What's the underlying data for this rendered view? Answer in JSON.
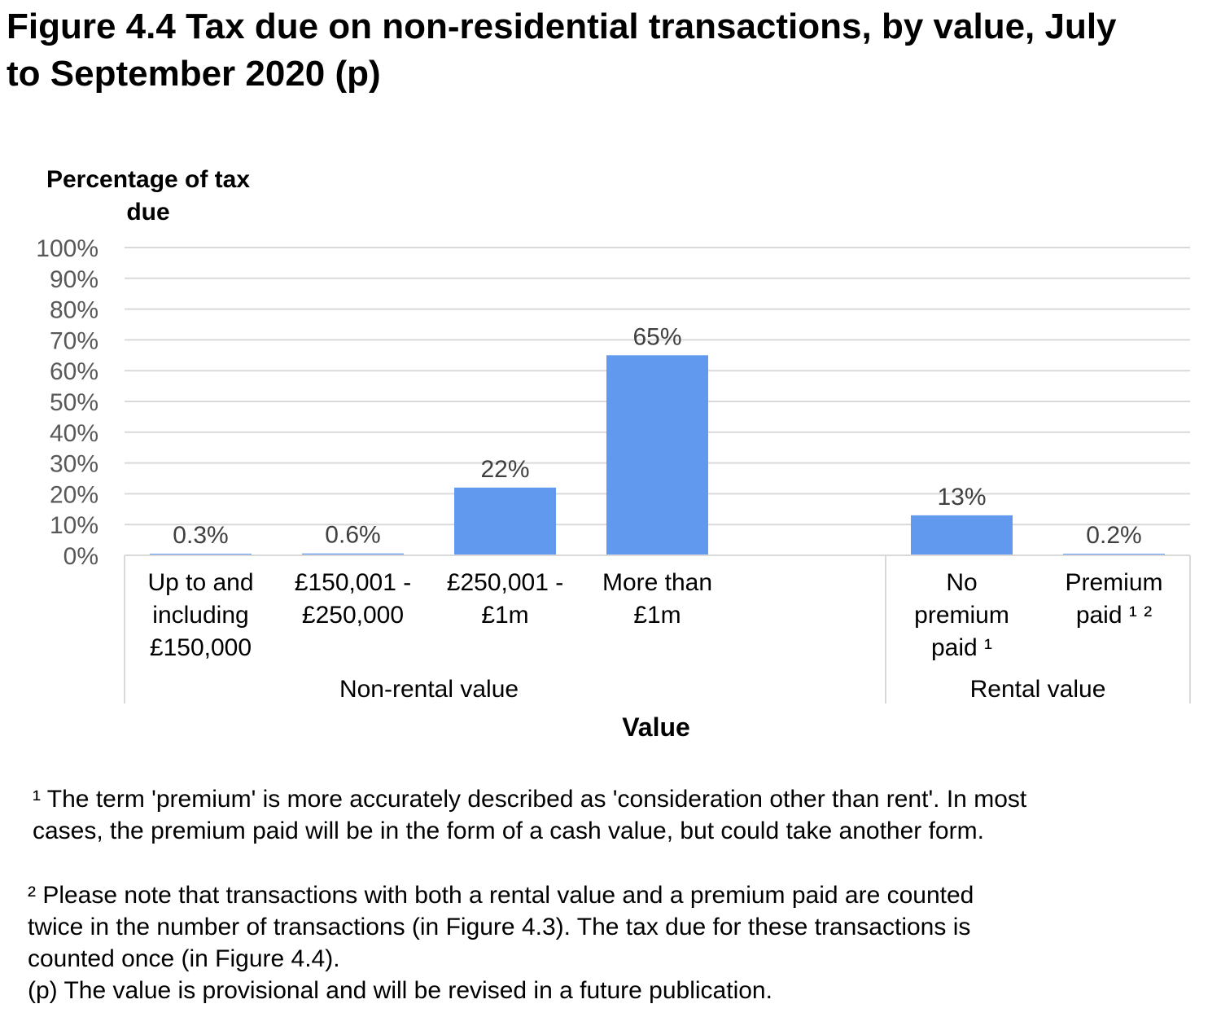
{
  "figure": {
    "title_lines": [
      "Figure 4.4  Tax due on non-residential transactions, by value, July",
      "to September 2020 (p)"
    ]
  },
  "chart_data": {
    "type": "bar",
    "title": "Figure 4.4  Tax due on non-residential transactions, by value, July to September 2020 (p)",
    "ylabel_lines": [
      "Percentage of tax",
      "due"
    ],
    "xlabel": "Value",
    "ylim": [
      0,
      100
    ],
    "yticks": [
      "0%",
      "10%",
      "20%",
      "30%",
      "40%",
      "50%",
      "60%",
      "70%",
      "80%",
      "90%",
      "100%"
    ],
    "grid": true,
    "bar_color": "#6199EE",
    "groups": [
      {
        "name": "Non-rental value",
        "categories": [
          {
            "label_lines": [
              "Up to and",
              "including",
              "£150,000"
            ],
            "value": 0.3,
            "label": "0.3%"
          },
          {
            "label_lines": [
              "£150,001 -",
              "£250,000"
            ],
            "value": 0.6,
            "label": "0.6%"
          },
          {
            "label_lines": [
              "£250,001 -",
              "£1m"
            ],
            "value": 22,
            "label": "22%"
          },
          {
            "label_lines": [
              "More than",
              "£1m"
            ],
            "value": 65,
            "label": "65%"
          }
        ]
      },
      {
        "name": "Rental value",
        "categories": [
          {
            "label_lines": [
              "No",
              "premium",
              "paid ¹"
            ],
            "value": 13,
            "label": "13%"
          },
          {
            "label_lines": [
              "Premium",
              "paid ¹ ²"
            ],
            "value": 0.2,
            "label": "0.2%"
          }
        ]
      }
    ]
  },
  "footnotes": {
    "note1_lines": [
      "¹ The term 'premium' is more accurately described as 'consideration other than rent'. In most",
      "cases, the premium paid will be in the form of a cash value, but could take another form."
    ],
    "note2_lines": [
      "² Please note that transactions with both a rental value and a premium paid are counted",
      "twice in the number of transactions (in Figure 4.3). The tax due for these transactions is",
      "counted once (in Figure 4.4).",
      "(p) The value is provisional and will be revised in a future publication."
    ]
  }
}
